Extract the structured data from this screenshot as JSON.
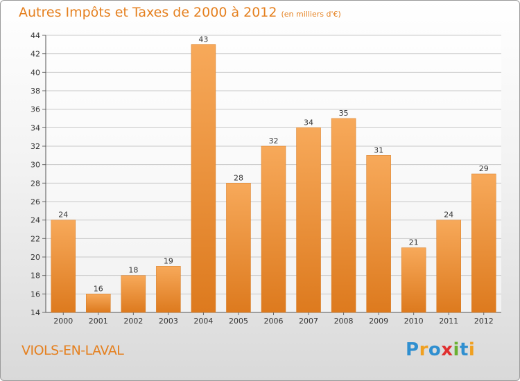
{
  "header": {
    "title": "Autres Impôts et Taxes de 2000 à 2012",
    "unit": "(en milliers d'€)"
  },
  "place": "VIOLS-EN-LAVAL",
  "logo": {
    "text": "Proxiti",
    "letters": [
      {
        "ch": "P",
        "color": "#2f8fd0"
      },
      {
        "ch": "r",
        "color": "#f0a020"
      },
      {
        "ch": "o",
        "color": "#2f8fd0"
      },
      {
        "ch": "x",
        "color": "#e03030"
      },
      {
        "ch": "i",
        "color": "#6ab030"
      },
      {
        "ch": "t",
        "color": "#2f8fd0"
      },
      {
        "ch": "i",
        "color": "#f0a020"
      }
    ]
  },
  "colors": {
    "accent": "#e5801f",
    "bar_light": "#f7a95a",
    "bar_dark": "#dd7a1e"
  },
  "chart_data": {
    "type": "bar",
    "categories": [
      "2000",
      "2001",
      "2002",
      "2003",
      "2004",
      "2005",
      "2006",
      "2007",
      "2008",
      "2009",
      "2010",
      "2011",
      "2012"
    ],
    "values": [
      24,
      16,
      18,
      19,
      43,
      28,
      32,
      34,
      35,
      31,
      21,
      24,
      29
    ],
    "ylim": [
      14,
      44
    ],
    "yticks": [
      14,
      16,
      18,
      20,
      22,
      24,
      26,
      28,
      30,
      32,
      34,
      36,
      38,
      40,
      42,
      44
    ],
    "grid": true
  }
}
